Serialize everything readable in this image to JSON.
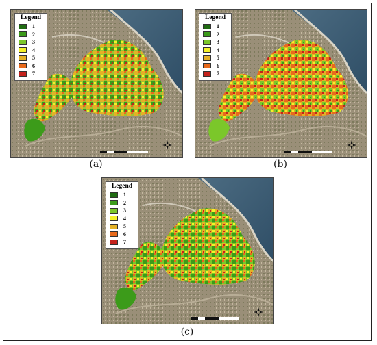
{
  "figure": {
    "panels": [
      {
        "id": "a",
        "caption": "(a)"
      },
      {
        "id": "b",
        "caption": "(b)"
      },
      {
        "id": "c",
        "caption": "(c)"
      }
    ],
    "legend": {
      "title": "Legend",
      "items": [
        {
          "label": "1",
          "color": "#1f6b12"
        },
        {
          "label": "2",
          "color": "#3c9b1a"
        },
        {
          "label": "3",
          "color": "#7bc72a"
        },
        {
          "label": "4",
          "color": "#f4f22a"
        },
        {
          "label": "5",
          "color": "#e3b126"
        },
        {
          "label": "6",
          "color": "#e86a1c"
        },
        {
          "label": "7",
          "color": "#c4221c"
        }
      ]
    }
  }
}
